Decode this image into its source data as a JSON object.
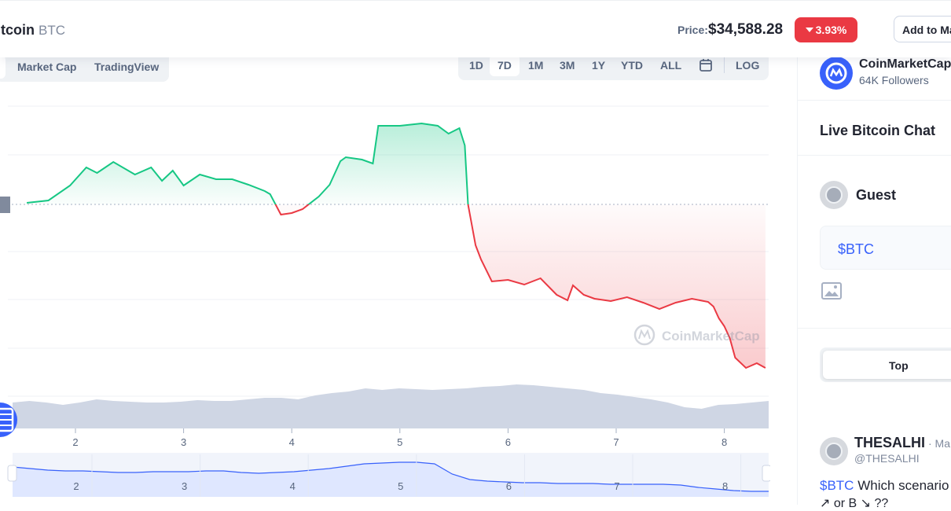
{
  "header": {
    "coin_name": "itcoin",
    "coin_symbol": "BTC",
    "price_label": "Price:",
    "price_value": "$34,588.28",
    "change": "3.93%",
    "watchlist_button": "Add to Ma"
  },
  "chart_tabs": {
    "market_cap": "Market Cap",
    "tradingview": "TradingView"
  },
  "ranges": [
    "1D",
    "7D",
    "1M",
    "3M",
    "1Y",
    "YTD",
    "ALL"
  ],
  "active_range": "7D",
  "log_label": "LOG",
  "watermark": "CoinMarketCap",
  "chart_data": {
    "type": "line",
    "x_ticks": [
      "2",
      "3",
      "4",
      "5",
      "6",
      "7",
      "8"
    ],
    "navigator_ticks": [
      "2",
      "3",
      "4",
      "5",
      "6",
      "7",
      "8"
    ],
    "baseline_y": 260,
    "series": [
      {
        "x": [
          1.55,
          1.75,
          1.95,
          2.1,
          2.2,
          2.35,
          2.55,
          2.7,
          2.8,
          2.9,
          3.0,
          3.15,
          3.3,
          3.45,
          3.6,
          3.75,
          3.8,
          3.9,
          4.0,
          4.1,
          4.25,
          4.35,
          4.45,
          4.5,
          4.65,
          4.75,
          4.8,
          5.0,
          5.2,
          5.35,
          5.45,
          5.55,
          5.6,
          5.63,
          5.7,
          5.75,
          5.85,
          6.0,
          6.15,
          6.3,
          6.45,
          6.55,
          6.6,
          6.7,
          6.8,
          6.95,
          7.1,
          7.25,
          7.4,
          7.55,
          7.7,
          7.85,
          7.9,
          7.95,
          8.0,
          8.05,
          8.1,
          8.2,
          8.3,
          8.38
        ],
        "y": [
          258,
          255,
          236,
          213,
          220,
          206,
          222,
          213,
          230,
          217,
          236,
          222,
          228,
          228,
          235,
          243,
          247,
          273,
          271,
          266,
          250,
          235,
          205,
          200,
          203,
          208,
          160,
          160,
          157,
          160,
          170,
          163,
          185,
          260,
          312,
          330,
          358,
          356,
          362,
          354,
          375,
          382,
          363,
          375,
          380,
          383,
          378,
          385,
          393,
          385,
          380,
          384,
          390,
          405,
          415,
          430,
          455,
          468,
          462,
          468
        ]
      }
    ],
    "volume": [
      512,
      510,
      512,
      515,
      512,
      508,
      510,
      511,
      512,
      512,
      511,
      509,
      510,
      510,
      508,
      506,
      506,
      508,
      503,
      500,
      498,
      494,
      496,
      494,
      495,
      496,
      495,
      494,
      492,
      491,
      489,
      490,
      492,
      494,
      496,
      500,
      502,
      505,
      508,
      512,
      518,
      520,
      515,
      514,
      512,
      510
    ],
    "navigator": [
      594,
      596,
      598,
      599,
      599,
      600,
      601,
      601,
      600,
      600,
      600,
      599,
      599,
      601,
      602,
      601,
      600,
      598,
      596,
      593,
      590,
      589,
      588,
      588,
      590,
      603,
      610,
      612,
      613,
      614,
      614,
      615,
      615,
      615,
      616,
      616,
      616,
      616,
      617,
      620,
      622,
      624,
      625,
      625
    ]
  },
  "panel": {
    "brand": "CoinMarketCap",
    "followers": "64K Followers",
    "chat_title": "Live Bitcoin Chat",
    "guest": "Guest",
    "message": "$BTC",
    "top_tab": "Top",
    "post_user": "THESALHI",
    "post_time": "· Ma",
    "post_handle": "@THESALHI",
    "post_tag": "$BTC",
    "post_text": " Which scenario",
    "post_text2": "↗ or B ↘ ??"
  },
  "colors": {
    "up": "#16c784",
    "down": "#ea3943",
    "accent": "#3861fb",
    "volume": "#cfd6e4",
    "navigator_fill": "#dfe7ff"
  }
}
